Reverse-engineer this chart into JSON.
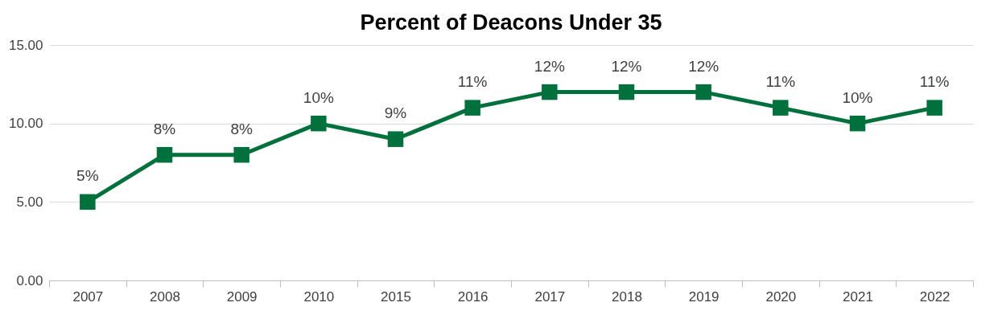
{
  "chart_data": {
    "type": "line",
    "title": "Percent of Deacons Under 35",
    "categories": [
      "2007",
      "2008",
      "2009",
      "2010",
      "2015",
      "2016",
      "2017",
      "2018",
      "2019",
      "2020",
      "2021",
      "2022"
    ],
    "series": [
      {
        "color": "#00703c",
        "values": [
          5,
          8,
          8,
          10,
          9,
          11,
          12,
          12,
          12,
          11,
          10,
          11
        ],
        "value_labels": [
          "5%",
          "8%",
          "8%",
          "10%",
          "9%",
          "11%",
          "12%",
          "12%",
          "12%",
          "11%",
          "10%",
          "11%"
        ]
      }
    ],
    "ylim": [
      0,
      15
    ],
    "yticks": [
      {
        "value": 0,
        "label": "0.00"
      },
      {
        "value": 5,
        "label": "5.00"
      },
      {
        "value": 10,
        "label": "10.00"
      },
      {
        "value": 15,
        "label": "15.00"
      }
    ],
    "grid": "y",
    "marker": "square",
    "line_style": "solid"
  }
}
